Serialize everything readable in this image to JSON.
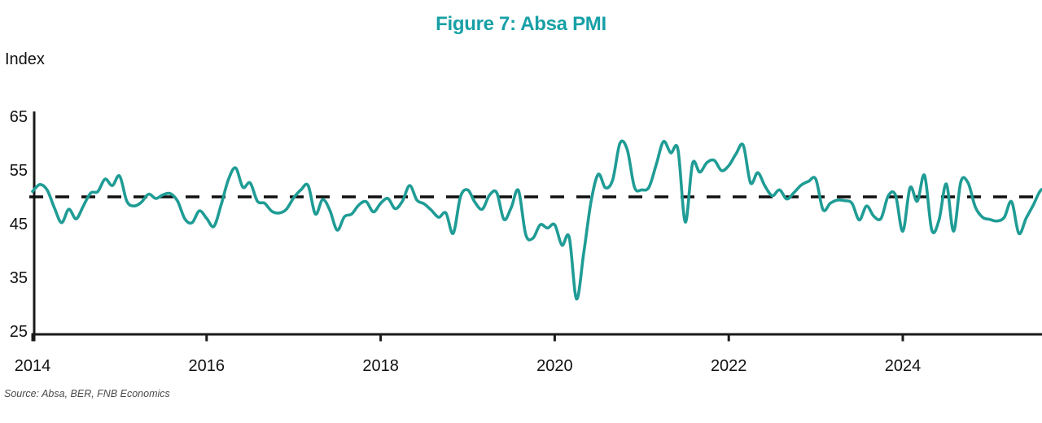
{
  "title": {
    "text": "Figure 7: Absa PMI",
    "color": "#17A0A6"
  },
  "axis_label": "Index",
  "source_note": "Source: Absa, BER, FNB Economics",
  "chart_data": {
    "type": "line",
    "series_name": "Absa PMI",
    "freq": "monthly",
    "start": "2014-01",
    "end": "2025-09",
    "values": [
      51.0,
      52.3,
      51.3,
      48.0,
      45.2,
      47.7,
      45.9,
      48.3,
      50.7,
      51.0,
      53.3,
      52.1,
      53.9,
      49.2,
      48.3,
      49.0,
      50.5,
      49.7,
      50.4,
      50.6,
      49.2,
      45.9,
      45.2,
      47.4,
      46.0,
      44.5,
      48.5,
      53.2,
      55.4,
      51.8,
      52.6,
      49.2,
      48.8,
      47.3,
      47.0,
      47.7,
      49.8,
      51.3,
      52.1,
      46.8,
      49.5,
      47.5,
      43.8,
      46.3,
      46.8,
      48.5,
      49.1,
      47.2,
      48.8,
      49.7,
      47.8,
      49.2,
      52.1,
      49.4,
      48.7,
      47.5,
      46.2,
      47.0,
      43.2,
      50.0,
      51.3,
      49.0,
      47.7,
      50.3,
      50.8,
      45.8,
      48.0,
      51.2,
      43.0,
      42.3,
      44.8,
      44.2,
      44.8,
      41.0,
      42.5,
      31.0,
      39.5,
      49.0,
      54.2,
      51.7,
      53.2,
      60.0,
      58.8,
      51.8,
      51.3,
      51.8,
      56.0,
      60.3,
      58.2,
      58.8,
      45.3,
      56.2,
      54.6,
      56.4,
      56.8,
      54.9,
      55.8,
      58.0,
      59.6,
      52.6,
      54.5,
      52.0,
      50.2,
      51.3,
      49.6,
      50.8,
      52.2,
      52.9,
      53.3,
      47.6,
      48.8,
      49.4,
      49.3,
      48.8,
      45.7,
      48.3,
      46.4,
      46.0,
      50.2,
      50.3,
      43.6,
      51.7,
      49.2,
      54.0,
      43.8,
      45.7,
      52.4,
      43.6,
      52.8,
      52.6,
      48.1,
      46.2,
      45.8,
      45.5,
      46.2,
      49.1,
      43.2,
      46.0,
      48.5,
      51.2,
      51.6
    ],
    "x_tick_labels": [
      "2014",
      "2016",
      "2018",
      "2020",
      "2022",
      "2024"
    ],
    "x_tick_years": [
      2014,
      2016,
      2018,
      2020,
      2022,
      2024
    ],
    "y_ticks": [
      65,
      55,
      45,
      35,
      25
    ],
    "ylim": [
      25,
      65
    ],
    "xlim_years": [
      2014,
      2025.75
    ],
    "ylabel": "Index",
    "ref_line": {
      "value": 50,
      "style": "dashed",
      "color": "#111111"
    },
    "line_color": "#1F9C95",
    "axis_color": "#1a1a1a",
    "grid": false,
    "legend": "none"
  }
}
